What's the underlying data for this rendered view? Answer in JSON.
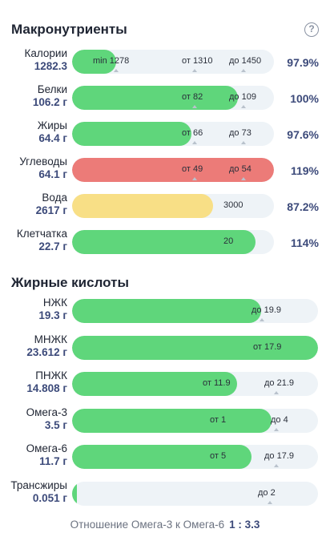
{
  "macro": {
    "title": "Макронутриенты",
    "rows": [
      {
        "name": "Калории",
        "amount": "1282.3",
        "pct": "97.9%",
        "fill": 0.22,
        "color": "#5fd67b",
        "min": "min 1278",
        "from": "от 1310",
        "to": "до 1450"
      },
      {
        "name": "Белки",
        "amount": "106.2 г",
        "pct": "100%",
        "fill": 0.82,
        "color": "#5fd67b",
        "from": "от 82",
        "to": "до 109"
      },
      {
        "name": "Жиры",
        "amount": "64.4 г",
        "pct": "97.6%",
        "fill": 0.59,
        "color": "#5fd67b",
        "from": "от 66",
        "to": "до 73"
      },
      {
        "name": "Углеводы",
        "amount": "64.1 г",
        "pct": "119%",
        "fill": 1.0,
        "color": "#ec7b78",
        "from": "от 49",
        "to": "до 54"
      },
      {
        "name": "Вода",
        "amount": "2617 г",
        "pct": "87.2%",
        "fill": 0.7,
        "color": "#f8df86",
        "center": "3000"
      },
      {
        "name": "Клетчатка",
        "amount": "22.7 г",
        "pct": "114%",
        "fill": 0.91,
        "color": "#5fd67b",
        "center": "20"
      }
    ]
  },
  "fatty": {
    "title": "Жирные кислоты",
    "rows": [
      {
        "name": "НЖК",
        "amount": "19.3 г",
        "fill": 0.77,
        "color": "#5fd67b",
        "to": "до 19.9"
      },
      {
        "name": "МНЖК",
        "amount": "23.612 г",
        "fill": 1.0,
        "color": "#5fd67b",
        "from": "от 17.9"
      },
      {
        "name": "ПНЖК",
        "amount": "14.808 г",
        "fill": 0.67,
        "color": "#5fd67b",
        "from": "от 11.9",
        "to": "до 21.9"
      },
      {
        "name": "Омега-3",
        "amount": "3.5 г",
        "fill": 0.81,
        "color": "#5fd67b",
        "from": "от 1",
        "to": "до 4"
      },
      {
        "name": "Омега-6",
        "amount": "11.7 г",
        "fill": 0.73,
        "color": "#5fd67b",
        "from": "от 5",
        "to": "до 17.9"
      },
      {
        "name": "Трансжиры",
        "amount": "0.051 г",
        "fill": 0.02,
        "color": "#5fd67b",
        "to": "до 2"
      }
    ]
  },
  "footer": {
    "label": "Отношение Омега-3 к Омега-6",
    "ratio": "1 : 3.3"
  }
}
